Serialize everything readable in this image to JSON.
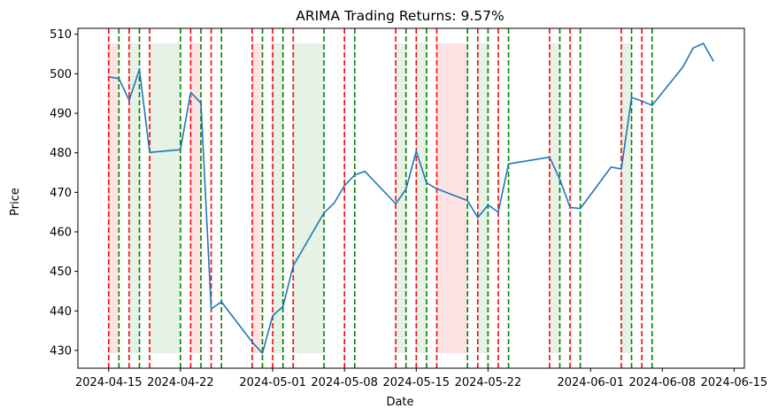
{
  "chart_data": {
    "type": "line",
    "title": "ARIMA Trading Returns: 9.57%",
    "xlabel": "Date",
    "ylabel": "Price",
    "xlim": [
      "2024-04-12",
      "2024-06-16"
    ],
    "ylim": [
      425.5,
      511.5
    ],
    "x_ticks": [
      "2024-04-15",
      "2024-04-22",
      "2024-05-01",
      "2024-05-08",
      "2024-05-15",
      "2024-05-22",
      "2024-06-01",
      "2024-06-08",
      "2024-06-15"
    ],
    "y_ticks": [
      430,
      440,
      450,
      460,
      470,
      480,
      490,
      500,
      510
    ],
    "grid": false,
    "colors": {
      "line": "#1f77b4",
      "buy": "#008000",
      "sell": "#ff0000",
      "long_shade": "#008000",
      "short_shade": "#ff0000"
    },
    "series": [
      {
        "x": [
          "2024-04-15",
          "2024-04-16",
          "2024-04-17",
          "2024-04-18",
          "2024-04-19",
          "2024-04-22",
          "2024-04-23",
          "2024-04-24",
          "2024-04-25",
          "2024-04-26",
          "2024-04-29",
          "2024-04-30",
          "2024-05-01",
          "2024-05-02",
          "2024-05-03",
          "2024-05-06",
          "2024-05-07",
          "2024-05-08",
          "2024-05-09",
          "2024-05-10",
          "2024-05-13",
          "2024-05-14",
          "2024-05-15",
          "2024-05-16",
          "2024-05-17",
          "2024-05-20",
          "2024-05-21",
          "2024-05-22",
          "2024-05-23",
          "2024-05-24",
          "2024-05-28",
          "2024-05-29",
          "2024-05-30",
          "2024-05-31",
          "2024-06-03",
          "2024-06-04",
          "2024-06-05",
          "2024-06-06",
          "2024-06-07",
          "2024-06-10",
          "2024-06-11",
          "2024-06-12",
          "2024-06-13"
        ],
        "values": [
          499.2,
          498.8,
          493.3,
          501.1,
          480.1,
          480.8,
          495.3,
          492.6,
          440.5,
          442.3,
          432.1,
          429.3,
          438.8,
          441.1,
          451.4,
          464.8,
          467.3,
          471.7,
          474.4,
          475.3,
          467.1,
          470.8,
          480.4,
          472.4,
          470.9,
          467.9,
          463.6,
          466.8,
          465.0,
          477.2,
          478.9,
          473.3,
          466.2,
          465.9,
          476.4,
          475.9,
          494.0,
          493.1,
          492.0,
          501.7,
          506.5,
          507.7,
          503.1
        ]
      }
    ],
    "signals": [
      {
        "date": "2024-04-15",
        "type": "sell"
      },
      {
        "date": "2024-04-16",
        "type": "buy"
      },
      {
        "date": "2024-04-17",
        "type": "sell"
      },
      {
        "date": "2024-04-18",
        "type": "buy"
      },
      {
        "date": "2024-04-19",
        "type": "sell"
      },
      {
        "date": "2024-04-22",
        "type": "buy"
      },
      {
        "date": "2024-04-23",
        "type": "sell"
      },
      {
        "date": "2024-04-24",
        "type": "buy"
      },
      {
        "date": "2024-04-25",
        "type": "sell"
      },
      {
        "date": "2024-04-26",
        "type": "buy"
      },
      {
        "date": "2024-04-29",
        "type": "sell"
      },
      {
        "date": "2024-04-30",
        "type": "buy"
      },
      {
        "date": "2024-05-01",
        "type": "sell"
      },
      {
        "date": "2024-05-02",
        "type": "buy"
      },
      {
        "date": "2024-05-03",
        "type": "sell"
      },
      {
        "date": "2024-05-06",
        "type": "buy"
      },
      {
        "date": "2024-05-08",
        "type": "sell"
      },
      {
        "date": "2024-05-09",
        "type": "buy"
      },
      {
        "date": "2024-05-13",
        "type": "sell"
      },
      {
        "date": "2024-05-14",
        "type": "buy"
      },
      {
        "date": "2024-05-15",
        "type": "sell"
      },
      {
        "date": "2024-05-16",
        "type": "buy"
      },
      {
        "date": "2024-05-17",
        "type": "sell"
      },
      {
        "date": "2024-05-20",
        "type": "buy"
      },
      {
        "date": "2024-05-21",
        "type": "sell"
      },
      {
        "date": "2024-05-22",
        "type": "buy"
      },
      {
        "date": "2024-05-23",
        "type": "sell"
      },
      {
        "date": "2024-05-24",
        "type": "buy"
      },
      {
        "date": "2024-05-28",
        "type": "sell"
      },
      {
        "date": "2024-05-29",
        "type": "buy"
      },
      {
        "date": "2024-05-30",
        "type": "sell"
      },
      {
        "date": "2024-05-31",
        "type": "buy"
      },
      {
        "date": "2024-06-04",
        "type": "sell"
      },
      {
        "date": "2024-06-05",
        "type": "buy"
      },
      {
        "date": "2024-06-06",
        "type": "sell"
      },
      {
        "date": "2024-06-07",
        "type": "buy"
      }
    ],
    "shaded_regions": [
      {
        "start": "2024-04-15",
        "end": "2024-04-16",
        "type": "short"
      },
      {
        "start": "2024-04-17",
        "end": "2024-04-18",
        "type": "long"
      },
      {
        "start": "2024-04-19",
        "end": "2024-04-22",
        "type": "long"
      },
      {
        "start": "2024-04-23",
        "end": "2024-04-24",
        "type": "short"
      },
      {
        "start": "2024-04-29",
        "end": "2024-04-30",
        "type": "short"
      },
      {
        "start": "2024-05-01",
        "end": "2024-05-02",
        "type": "long"
      },
      {
        "start": "2024-05-03",
        "end": "2024-05-06",
        "type": "long"
      },
      {
        "start": "2024-05-13",
        "end": "2024-05-14",
        "type": "long"
      },
      {
        "start": "2024-05-15",
        "end": "2024-05-16",
        "type": "long"
      },
      {
        "start": "2024-05-17",
        "end": "2024-05-20",
        "type": "short"
      },
      {
        "start": "2024-05-21",
        "end": "2024-05-22",
        "type": "long"
      },
      {
        "start": "2024-05-28",
        "end": "2024-05-29",
        "type": "long"
      },
      {
        "start": "2024-06-04",
        "end": "2024-06-05",
        "type": "long"
      }
    ]
  }
}
